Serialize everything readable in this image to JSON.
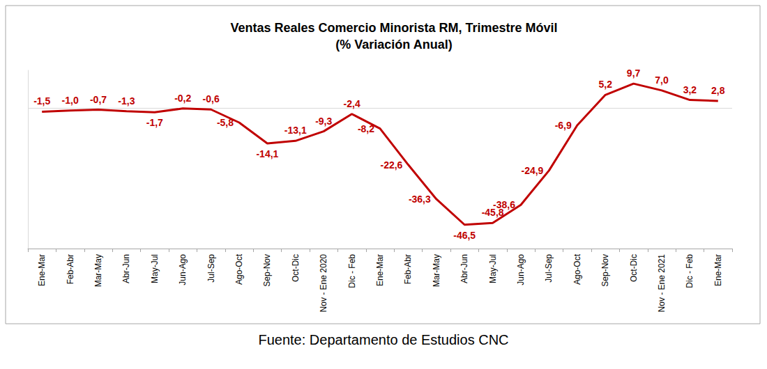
{
  "chart_data": {
    "type": "line",
    "title": "Ventas Reales Comercio Minorista RM, Trimestre Móvil",
    "subtitle": "(% Variación Anual)",
    "source": "Fuente: Departamento de Estudios CNC",
    "categories": [
      "Ene-Mar",
      "Feb-Abr",
      "Mar-May",
      "Abr-Jun",
      "May-Jul",
      "Jun-Ago",
      "Jul-Sep",
      "Ago-Oct",
      "Sep-Nov",
      "Oct-Dic",
      "Nov - Ene 2020",
      "Dic - Feb",
      "Ene-Mar",
      "Feb-Abr",
      "Mar-May",
      "Abr-Jun",
      "May-Jul",
      "Jun-Ago",
      "Jul-Sep",
      "Ago-Oct",
      "Sep-Nov",
      "Oct-Dic",
      "Nov - Ene 2021",
      "Dic - Feb",
      "Ene-Mar"
    ],
    "values": [
      -1.5,
      -1.0,
      -0.7,
      -1.3,
      -1.7,
      -0.2,
      -0.6,
      -5.8,
      -14.1,
      -13.1,
      -9.3,
      -2.4,
      -8.2,
      -22.6,
      -36.3,
      -46.5,
      -45.8,
      -38.6,
      -24.9,
      -6.9,
      5.2,
      9.7,
      7.0,
      3.2,
      2.8
    ],
    "value_labels": [
      "-1,5",
      "-1,0",
      "-0,7",
      "-1,3",
      "-1,7",
      "-0,2",
      "-0,6",
      "-5,8",
      "-14,1",
      "-13,1",
      "-9,3",
      "-2,4",
      "-8,2",
      "-22,6",
      "-36,3",
      "-46,5",
      "-45,8",
      "-38,6",
      "-24,9",
      "-6,9",
      "5,2",
      "9,7",
      "7,0",
      "3,2",
      "2,8"
    ],
    "color": "#c00000",
    "ylim": [
      -56,
      15
    ],
    "yticks": [
      0
    ],
    "grid": true,
    "data_labels": true,
    "tick_labels": "x"
  }
}
